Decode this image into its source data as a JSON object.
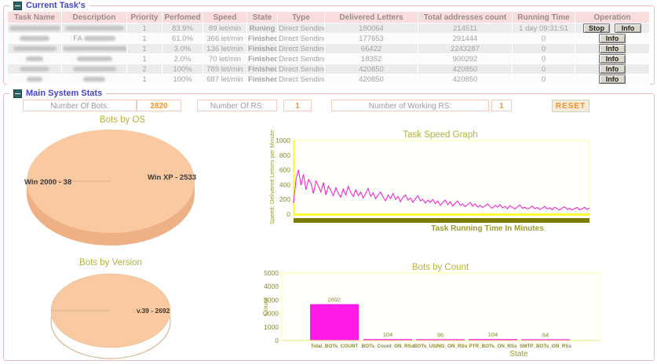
{
  "panels": {
    "tasks": {
      "title": "Current Task's",
      "table": {
        "headers": [
          "Task Name",
          "Description",
          "Priority",
          "Perfomed",
          "Speed",
          "State",
          "Type",
          "Delivered Letters",
          "Total addresses count",
          "Running Time",
          "Operation"
        ],
        "rows": [
          {
            "task_name": "",
            "description": "",
            "priority": "1",
            "performed": "83.9%",
            "speed": "89 let/min",
            "state": "Runing",
            "state_kind": "running",
            "type": "Direct Sending",
            "delivered": "180064",
            "total": "214511",
            "running_time": "1 day 09:31:51",
            "ops": [
              "Stop",
              "Info"
            ]
          },
          {
            "task_name": "",
            "description": "FA",
            "priority": "1",
            "performed": "61.0%",
            "speed": "366 let/min",
            "state": "Finished",
            "state_kind": "finished",
            "type": "Direct Sending",
            "delivered": "177653",
            "total": "291444",
            "running_time": "0",
            "ops": [
              "Info"
            ]
          },
          {
            "task_name": "",
            "description": "",
            "priority": "1",
            "performed": "3.0%",
            "speed": "136 let/min",
            "state": "Finished",
            "state_kind": "finished",
            "type": "Direct Sending",
            "delivered": "66422",
            "total": "2243287",
            "running_time": "0",
            "ops": [
              "Info"
            ]
          },
          {
            "task_name": "",
            "description": "",
            "priority": "1",
            "performed": "2.0%",
            "speed": "70 let/min",
            "state": "Finished",
            "state_kind": "finished",
            "type": "Direct Sending",
            "delivered": "18352",
            "total": "900292",
            "running_time": "0",
            "ops": [
              "Info"
            ]
          },
          {
            "task_name": "",
            "description": "",
            "priority": "2",
            "performed": "100%",
            "speed": "789 let/min",
            "state": "Finished",
            "state_kind": "finished",
            "type": "Direct Sending",
            "delivered": "420850",
            "total": "420850",
            "running_time": "0",
            "ops": [
              "Info"
            ]
          },
          {
            "task_name": "",
            "description": "",
            "priority": "1",
            "performed": "100%",
            "speed": "687 let/min",
            "state": "Finished",
            "state_kind": "finished",
            "type": "Direct Sending",
            "delivered": "420850",
            "total": "420850",
            "running_time": "0",
            "ops": [
              "Info"
            ]
          }
        ]
      }
    },
    "stats": {
      "title": "Main System Stats",
      "fields": [
        {
          "label": "Number Of Bots:",
          "value": "2820"
        },
        {
          "label": "Number Of RS:",
          "value": "1"
        },
        {
          "label": "Number of Working RS:",
          "value": "1"
        }
      ],
      "reset_label": "RESET"
    }
  },
  "colors": {
    "line_magenta": "#f516d6",
    "bar_magenta": "#ff1ae8",
    "pie_peach": "#f9c9a2",
    "pie_side": "#eeb185",
    "pie_outline_tan": "#d2ab7e",
    "chart_title_olive": "#b3b33c",
    "axis_olive": "#9c9c2e",
    "tick_olive": "#8a8a2a",
    "plot_border_yellow": "#ffffa0",
    "axis_yellow": "#ffff33",
    "olive_strip": "#7c7c00",
    "running_state": "#ff22cc",
    "finished_state": "#3a3ac6",
    "value_orange": "#ff9123",
    "header_pink": "#f9dcdc",
    "pie_label_dark": "#3c3c3c"
  },
  "chart_data": [
    {
      "type": "pie",
      "title": "Bots by OS",
      "slices": [
        {
          "label": "Win XP - 2533",
          "value": 2533
        },
        {
          "label": "Win 2000 - 38",
          "value": 38
        }
      ]
    },
    {
      "type": "line",
      "title": "Task Speed Graph",
      "xlabel": "Task Running Time In Minutes",
      "ylabel": "Speed: Delivered Letters per Minute",
      "ylim": [
        0,
        1000
      ],
      "yticks": [
        0,
        200,
        400,
        600,
        800,
        1000
      ],
      "grid": false,
      "values": [
        150,
        480,
        600,
        390,
        540,
        330,
        470,
        420,
        280,
        450,
        380,
        300,
        430,
        260,
        380,
        320,
        250,
        360,
        280,
        230,
        340,
        260,
        380,
        290,
        240,
        330,
        250,
        300,
        220,
        280,
        350,
        240,
        290,
        210,
        260,
        300,
        230,
        180,
        260,
        210,
        280,
        200,
        240,
        170,
        230,
        260,
        190,
        220,
        160,
        210,
        250,
        180,
        200,
        150,
        190,
        160,
        200,
        140,
        180,
        120,
        160,
        190,
        130,
        170,
        110,
        150,
        180,
        120,
        140,
        100,
        130,
        160,
        110,
        140,
        95,
        120,
        90,
        110,
        140,
        100,
        80,
        120,
        95,
        130,
        85,
        105,
        75,
        115,
        90,
        70,
        100,
        125,
        80,
        95,
        70,
        85,
        110,
        75,
        90,
        65,
        80,
        105,
        70,
        85,
        60,
        95,
        75,
        55,
        85,
        100,
        65,
        80,
        55,
        75,
        90,
        60,
        70,
        95,
        65,
        80
      ]
    },
    {
      "type": "pie",
      "title": "Bots by Version",
      "slices": [
        {
          "label": "v.39 - 2692",
          "value": 2692
        }
      ]
    },
    {
      "type": "bar",
      "title": "Bots by Count",
      "xlabel": "State",
      "ylabel": "Count",
      "ylim": [
        0,
        5000
      ],
      "yticks": [
        0,
        1000,
        2000,
        3000,
        4000,
        5000
      ],
      "categories": [
        "Total_BOTs_COUNT",
        "BOTs_Count_ON_RSs",
        "BOTs_USING_ON_RSs",
        "PTR_BOTs_ON_RSs",
        "SMTP_BOTs_ON_RSs"
      ],
      "values": [
        2692,
        104,
        96,
        104,
        64
      ]
    }
  ]
}
